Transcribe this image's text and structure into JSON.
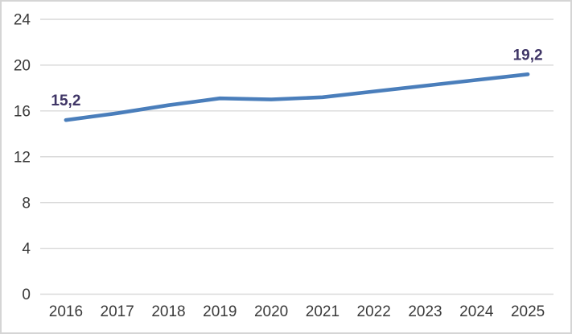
{
  "chart_data": {
    "type": "line",
    "title": "",
    "xlabel": "",
    "ylabel": "",
    "categories": [
      "2016",
      "2017",
      "2018",
      "2019",
      "2020",
      "2021",
      "2022",
      "2023",
      "2024",
      "2025"
    ],
    "series": [
      {
        "name": "series-1",
        "values": [
          15.2,
          15.8,
          16.5,
          17.1,
          17.0,
          17.2,
          17.7,
          18.2,
          18.7,
          19.2
        ]
      }
    ],
    "data_labels": [
      {
        "index": 0,
        "text": "15,2"
      },
      {
        "index": 9,
        "text": "19,2"
      }
    ],
    "ylim": [
      0,
      24
    ],
    "ytick_step": 4,
    "ytick_labels": [
      "0",
      "4",
      "8",
      "12",
      "16",
      "20",
      "24"
    ],
    "grid": "horizontal",
    "legend": "none",
    "colors": {
      "line": "#4a7ebb",
      "data_label": "#3f3566",
      "tick_label": "#3a3a3a",
      "gridline": "#d9d9d9",
      "frame_border": "#d5d5d5",
      "background": "#ffffff"
    }
  }
}
